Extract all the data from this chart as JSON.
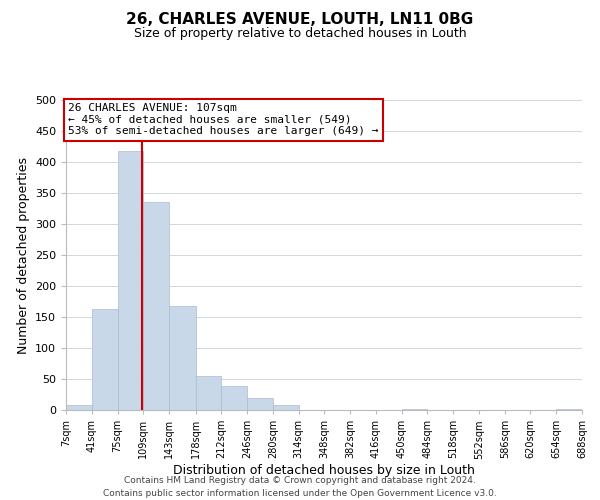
{
  "title1": "26, CHARLES AVENUE, LOUTH, LN11 0BG",
  "title2": "Size of property relative to detached houses in Louth",
  "xlabel": "Distribution of detached houses by size in Louth",
  "ylabel": "Number of detached properties",
  "bar_edges": [
    7,
    41,
    75,
    109,
    143,
    178,
    212,
    246,
    280,
    314,
    348,
    382,
    416,
    450,
    484,
    518,
    552,
    586,
    620,
    654,
    688
  ],
  "bar_heights": [
    8,
    163,
    418,
    335,
    168,
    55,
    38,
    20,
    8,
    0,
    0,
    0,
    0,
    1,
    0,
    0,
    0,
    0,
    0,
    1
  ],
  "tick_labels": [
    "7sqm",
    "41sqm",
    "75sqm",
    "109sqm",
    "143sqm",
    "178sqm",
    "212sqm",
    "246sqm",
    "280sqm",
    "314sqm",
    "348sqm",
    "382sqm",
    "416sqm",
    "450sqm",
    "484sqm",
    "518sqm",
    "552sqm",
    "586sqm",
    "620sqm",
    "654sqm",
    "688sqm"
  ],
  "bar_color": "#c8d8e8",
  "bar_edge_color": "#aabbd0",
  "vline_x": 107,
  "vline_color": "#cc0000",
  "annotation_title": "26 CHARLES AVENUE: 107sqm",
  "annotation_line1": "← 45% of detached houses are smaller (549)",
  "annotation_line2": "53% of semi-detached houses are larger (649) →",
  "annotation_box_color": "#ffffff",
  "annotation_box_edge": "#cc0000",
  "ylim": [
    0,
    500
  ],
  "yticks": [
    0,
    50,
    100,
    150,
    200,
    250,
    300,
    350,
    400,
    450,
    500
  ],
  "grid_color": "#d0d8e0",
  "footer1": "Contains HM Land Registry data © Crown copyright and database right 2024.",
  "footer2": "Contains public sector information licensed under the Open Government Licence v3.0."
}
